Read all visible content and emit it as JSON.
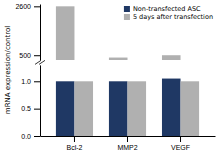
{
  "chart_data": [
    {
      "type": "bar",
      "categories": [
        "Bcl-2",
        "MMP2",
        "VEGF"
      ],
      "series": [
        {
          "color": "#b0b0b0",
          "values": [
            2600,
            400,
            500
          ]
        }
      ],
      "ylim": [
        300,
        2700
      ],
      "yticks": [
        500,
        2600
      ],
      "tick_labels": "y"
    },
    {
      "type": "bar",
      "categories": [
        "Bcl-2",
        "MMP2",
        "VEGF"
      ],
      "series": [
        {
          "name": "Non-transfected ASC",
          "color": "#1f3864",
          "values": [
            1.0,
            1.0,
            1.05
          ]
        },
        {
          "name": "5 days after transfection",
          "color": "#b0b0b0",
          "values": [
            1.0,
            1.0,
            1.0
          ]
        }
      ],
      "y_label": "mRNA expression/control",
      "ylim": [
        0,
        1.3
      ],
      "yticks": [
        {
          "value": 0,
          "label": "0.0"
        },
        {
          "value": 0.5,
          "label": "0.5"
        },
        {
          "value": 1,
          "label": "1.0"
        }
      ],
      "legend": "upper right"
    }
  ]
}
